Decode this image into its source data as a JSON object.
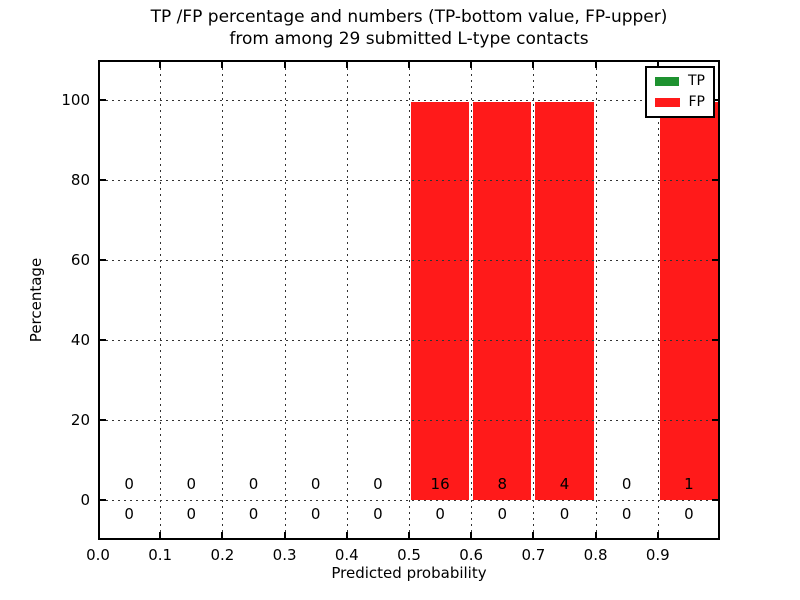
{
  "chart_data": {
    "type": "bar",
    "title_line1": "TP /FP percentage and numbers (TP-bottom value, FP-upper)",
    "title_line2": "from among 29 submitted L-type contacts",
    "xlabel": "Predicted probability",
    "ylabel": "Percentage",
    "total_submitted_contacts": 29,
    "xlim": [
      0.0,
      1.0
    ],
    "ylim": [
      -10,
      110
    ],
    "bin_width": 0.1,
    "bin_starts": [
      0.0,
      0.1,
      0.2,
      0.3,
      0.4,
      0.5,
      0.6,
      0.7,
      0.8,
      0.9
    ],
    "x_tick_values": [
      0.0,
      0.1,
      0.2,
      0.3,
      0.4,
      0.5,
      0.6,
      0.7,
      0.8,
      0.9
    ],
    "x_tick_labels": [
      "0.0",
      "0.1",
      "0.2",
      "0.3",
      "0.4",
      "0.5",
      "0.6",
      "0.7",
      "0.8",
      "0.9"
    ],
    "y_tick_values": [
      0,
      20,
      40,
      60,
      80,
      100
    ],
    "y_tick_labels": [
      "0",
      "20",
      "40",
      "60",
      "80",
      "100"
    ],
    "grid": {
      "style": "dotted",
      "color": "#333333",
      "on": true
    },
    "legend": {
      "position": "upper-right",
      "entries": [
        {
          "label": "TP",
          "color": "#1e9230"
        },
        {
          "label": "FP",
          "color": "#ff1a1a"
        }
      ]
    },
    "series": [
      {
        "name": "TP",
        "color": "#1e9230",
        "label_row": "bottom",
        "counts": [
          0,
          0,
          0,
          0,
          0,
          0,
          0,
          0,
          0,
          0
        ],
        "percentages": [
          0,
          0,
          0,
          0,
          0,
          0,
          0,
          0,
          0,
          0
        ]
      },
      {
        "name": "FP",
        "color": "#ff1a1a",
        "label_row": "top",
        "counts": [
          0,
          0,
          0,
          0,
          0,
          16,
          8,
          4,
          0,
          1
        ],
        "percentages": [
          0,
          0,
          0,
          0,
          0,
          100,
          100,
          100,
          0,
          100
        ]
      }
    ]
  }
}
